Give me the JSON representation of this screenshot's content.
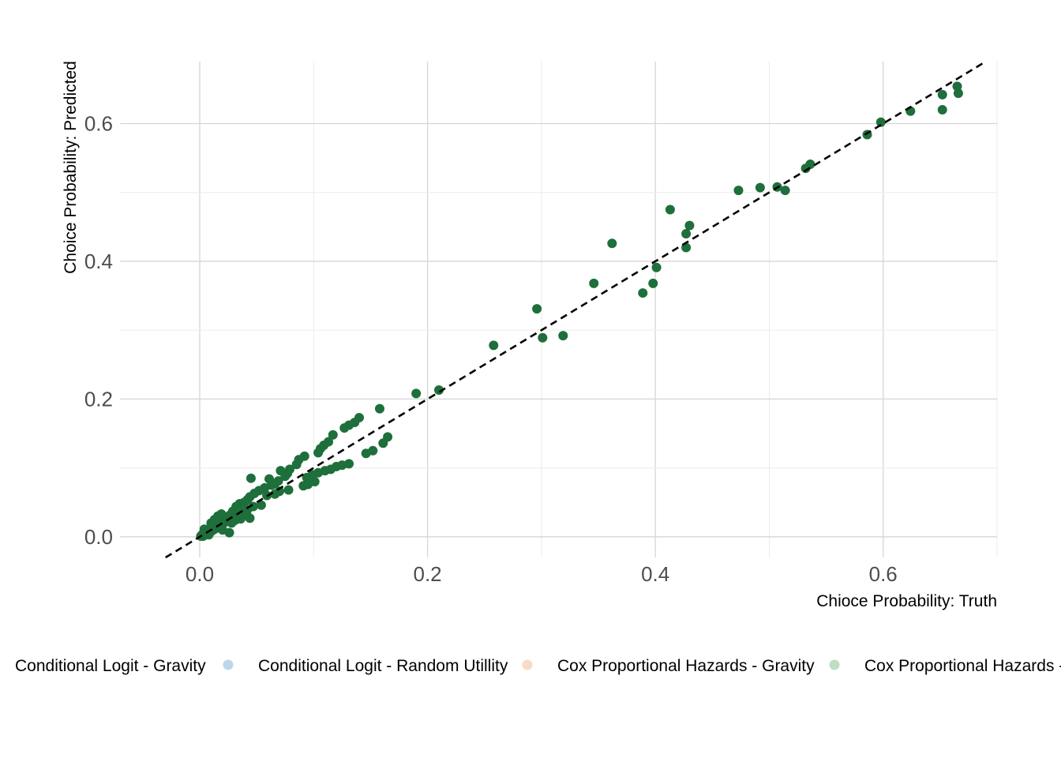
{
  "chart_data": {
    "type": "scatter",
    "xlabel": "Chioce Probability: Truth",
    "ylabel": "Choice Probability: Predicted",
    "xlim": [
      -0.07,
      0.7
    ],
    "ylim": [
      -0.03,
      0.69
    ],
    "x_ticks": [
      0.0,
      0.2,
      0.4,
      0.6
    ],
    "x_tick_labels": [
      "0.0",
      "0.2",
      "0.4",
      "0.6"
    ],
    "y_ticks": [
      0.0,
      0.2,
      0.4,
      0.6
    ],
    "y_tick_labels": [
      "0.0",
      "0.2",
      "0.4",
      "0.6"
    ],
    "grid": true,
    "reference_line": "y = x (dashed)",
    "legend_position": "bottom",
    "legend": [
      {
        "label": "Conditional Logit - Gravity",
        "color": "#f2c49b"
      },
      {
        "label": "Conditional Logit - Random Utillity",
        "color": "#a6c8e4"
      },
      {
        "label": "Cox Proportional Hazards - Gravity",
        "color": "#f7cfb1"
      },
      {
        "label": "Cox Proportional Hazards -",
        "color": "#a9d3b1"
      }
    ],
    "series": [
      {
        "color": "#1e6f3b",
        "points": [
          [
            0.665,
            0.654
          ],
          [
            0.666,
            0.644
          ],
          [
            0.652,
            0.642
          ],
          [
            0.652,
            0.62
          ],
          [
            0.624,
            0.618
          ],
          [
            0.598,
            0.602
          ],
          [
            0.586,
            0.584
          ],
          [
            0.536,
            0.541
          ],
          [
            0.532,
            0.535
          ],
          [
            0.514,
            0.503
          ],
          [
            0.507,
            0.508
          ],
          [
            0.492,
            0.507
          ],
          [
            0.473,
            0.503
          ],
          [
            0.413,
            0.475
          ],
          [
            0.43,
            0.452
          ],
          [
            0.427,
            0.44
          ],
          [
            0.427,
            0.42
          ],
          [
            0.401,
            0.391
          ],
          [
            0.398,
            0.368
          ],
          [
            0.389,
            0.354
          ],
          [
            0.362,
            0.426
          ],
          [
            0.346,
            0.368
          ],
          [
            0.296,
            0.331
          ],
          [
            0.301,
            0.289
          ],
          [
            0.319,
            0.292
          ],
          [
            0.258,
            0.278
          ],
          [
            0.21,
            0.213
          ],
          [
            0.19,
            0.208
          ],
          [
            0.158,
            0.186
          ],
          [
            0.165,
            0.145
          ],
          [
            0.161,
            0.136
          ],
          [
            0.152,
            0.125
          ],
          [
            0.146,
            0.121
          ],
          [
            0.14,
            0.173
          ],
          [
            0.136,
            0.166
          ],
          [
            0.131,
            0.162
          ],
          [
            0.127,
            0.158
          ],
          [
            0.117,
            0.148
          ],
          [
            0.113,
            0.138
          ],
          [
            0.109,
            0.133
          ],
          [
            0.106,
            0.128
          ],
          [
            0.104,
            0.122
          ],
          [
            0.131,
            0.106
          ],
          [
            0.125,
            0.104
          ],
          [
            0.12,
            0.102
          ],
          [
            0.115,
            0.098
          ],
          [
            0.11,
            0.096
          ],
          [
            0.104,
            0.093
          ],
          [
            0.099,
            0.09
          ],
          [
            0.094,
            0.086
          ],
          [
            0.101,
            0.08
          ],
          [
            0.095,
            0.076
          ],
          [
            0.091,
            0.074
          ],
          [
            0.092,
            0.117
          ],
          [
            0.087,
            0.112
          ],
          [
            0.085,
            0.105
          ],
          [
            0.079,
            0.098
          ],
          [
            0.077,
            0.092
          ],
          [
            0.071,
            0.096
          ],
          [
            0.075,
            0.088
          ],
          [
            0.061,
            0.084
          ],
          [
            0.069,
            0.081
          ],
          [
            0.066,
            0.077
          ],
          [
            0.063,
            0.075
          ],
          [
            0.078,
            0.068
          ],
          [
            0.07,
            0.066
          ],
          [
            0.066,
            0.062
          ],
          [
            0.059,
            0.06
          ],
          [
            0.057,
            0.071
          ],
          [
            0.052,
            0.067
          ],
          [
            0.048,
            0.063
          ],
          [
            0.045,
            0.085
          ],
          [
            0.044,
            0.058
          ],
          [
            0.042,
            0.054
          ],
          [
            0.039,
            0.05
          ],
          [
            0.035,
            0.048
          ],
          [
            0.032,
            0.044
          ],
          [
            0.047,
            0.044
          ],
          [
            0.054,
            0.046
          ],
          [
            0.042,
            0.04
          ],
          [
            0.037,
            0.036
          ],
          [
            0.029,
            0.037
          ],
          [
            0.027,
            0.032
          ],
          [
            0.024,
            0.029
          ],
          [
            0.021,
            0.026
          ],
          [
            0.018,
            0.024
          ],
          [
            0.015,
            0.021
          ],
          [
            0.012,
            0.017
          ],
          [
            0.01,
            0.014
          ],
          [
            0.008,
            0.011
          ],
          [
            0.006,
            0.008
          ],
          [
            0.004,
            0.006
          ],
          [
            0.002,
            0.003
          ],
          [
            0.001,
            0.001
          ],
          [
            0.003,
            0.001
          ],
          [
            0.005,
            0.003
          ],
          [
            0.007,
            0.004
          ],
          [
            0.009,
            0.006
          ],
          [
            0.011,
            0.009
          ],
          [
            0.013,
            0.011
          ],
          [
            0.015,
            0.013
          ],
          [
            0.017,
            0.015
          ],
          [
            0.019,
            0.018
          ],
          [
            0.021,
            0.02
          ],
          [
            0.023,
            0.022
          ],
          [
            0.025,
            0.024
          ],
          [
            0.016,
            0.03
          ],
          [
            0.019,
            0.033
          ],
          [
            0.013,
            0.025
          ],
          [
            0.01,
            0.02
          ],
          [
            0.028,
            0.02
          ],
          [
            0.031,
            0.024
          ],
          [
            0.034,
            0.028
          ],
          [
            0.038,
            0.031
          ],
          [
            0.041,
            0.034
          ],
          [
            0.044,
            0.027
          ],
          [
            0.036,
            0.026
          ],
          [
            0.026,
            0.006
          ],
          [
            0.02,
            0.01
          ],
          [
            0.008,
            0.003
          ],
          [
            0.004,
            0.011
          ]
        ]
      }
    ]
  }
}
